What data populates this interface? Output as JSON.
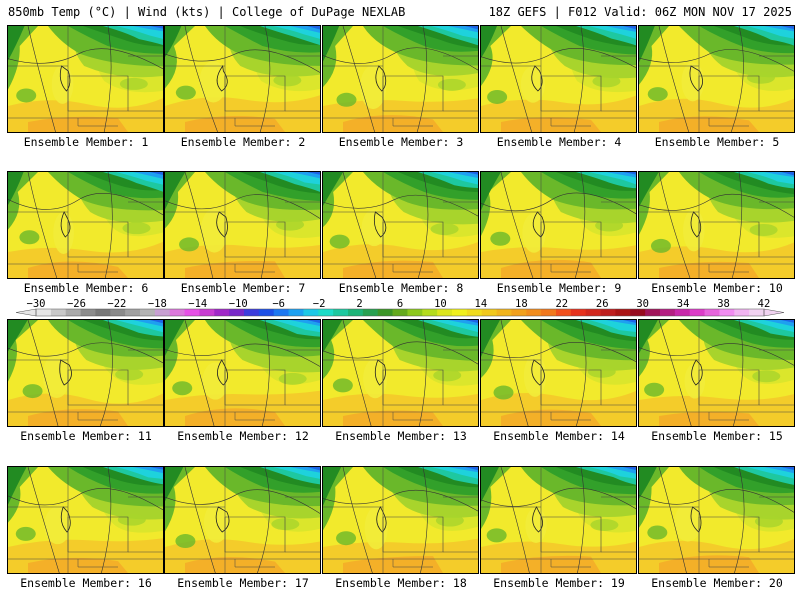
{
  "header": {
    "left": "850mb Temp (°C) | Wind (kts) | College of DuPage NEXLAB",
    "right": "18Z GEFS | F012 Valid: 06Z MON NOV 17 2025"
  },
  "panels": [
    {
      "label": "Ensemble Member: 1"
    },
    {
      "label": "Ensemble Member: 2"
    },
    {
      "label": "Ensemble Member: 3"
    },
    {
      "label": "Ensemble Member: 4"
    },
    {
      "label": "Ensemble Member: 5"
    },
    {
      "label": "Ensemble Member: 6"
    },
    {
      "label": "Ensemble Member: 7"
    },
    {
      "label": "Ensemble Member: 8"
    },
    {
      "label": "Ensemble Member: 9"
    },
    {
      "label": "Ensemble Member: 10"
    },
    {
      "label": "Ensemble Member: 11"
    },
    {
      "label": "Ensemble Member: 12"
    },
    {
      "label": "Ensemble Member: 13"
    },
    {
      "label": "Ensemble Member: 14"
    },
    {
      "label": "Ensemble Member: 15"
    },
    {
      "label": "Ensemble Member: 16"
    },
    {
      "label": "Ensemble Member: 17"
    },
    {
      "label": "Ensemble Member: 18"
    },
    {
      "label": "Ensemble Member: 19"
    },
    {
      "label": "Ensemble Member: 20"
    }
  ],
  "colorbar": {
    "tick_labels": [
      "−30",
      "−26",
      "−22",
      "−18",
      "−14",
      "−10",
      "−6",
      "−2",
      "2",
      "6",
      "10",
      "14",
      "18",
      "22",
      "26",
      "30",
      "34",
      "38",
      "42"
    ],
    "colors": [
      "#e6e6e6",
      "#c8c8c8",
      "#aaaaaa",
      "#8c8c8c",
      "#787878",
      "#8a8a8a",
      "#a0a0a0",
      "#b4b4b4",
      "#c8a0d2",
      "#dc78dc",
      "#e650e6",
      "#c83cd2",
      "#a028c8",
      "#7828c8",
      "#3c3cdc",
      "#1e50e6",
      "#1e78f0",
      "#1ea0f0",
      "#1ec8e6",
      "#1edcc8",
      "#1ec8a0",
      "#1eb478",
      "#28a050",
      "#3c9628",
      "#64aa1e",
      "#8cc81e",
      "#b4dc1e",
      "#dce61e",
      "#f0f01e",
      "#f0dc1e",
      "#f0c81e",
      "#f0b41e",
      "#f0a01e",
      "#f08c1e",
      "#f0781e",
      "#f0501e",
      "#e6321e",
      "#d2281e",
      "#be1e1e",
      "#aa1414",
      "#960a1e",
      "#a0145a",
      "#b41e82",
      "#c828aa",
      "#dc3cc8",
      "#e664dc",
      "#f08cf0",
      "#f0b4f0",
      "#f0d2f0"
    ]
  },
  "map_colors": [
    "#228b22",
    "#32a02a",
    "#6ab82a",
    "#a8d42c",
    "#dbe62c",
    "#f2ea2c",
    "#f4cc2a",
    "#f4b028",
    "#1ec8a0",
    "#1ed2dc",
    "#1ea0f0",
    "#1e64e6"
  ]
}
